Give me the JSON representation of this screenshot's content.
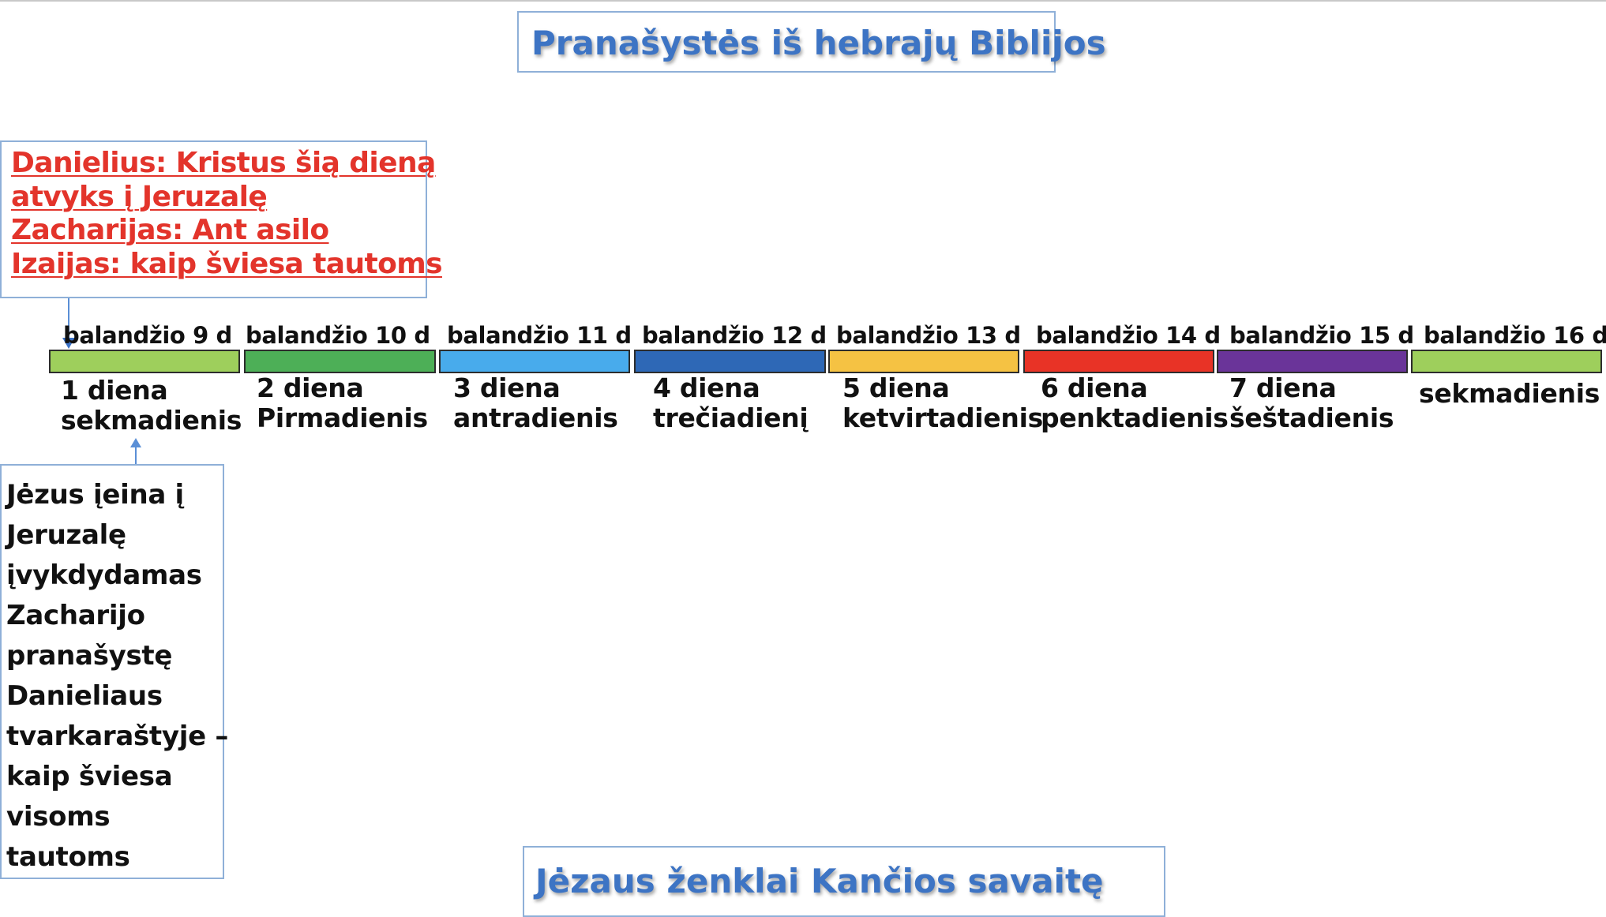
{
  "slide": {
    "top_title": "Pranašystės iš hebrajų Biblijos",
    "bottom_title": "Jėzaus ženklai Kančios savaitę",
    "prophecy_lines": [
      "Danielius: Kristus šią dieną",
      "atvyks į Jeruzalę",
      "Zacharijas: Ant asilo",
      "Izaijas: kaip šviesa tautoms"
    ],
    "fulfillment_lines": [
      "Jėzus įeina į",
      "Jeruzalę",
      "įvykdydamas",
      "Zacharijo",
      "pranašystę",
      "Danieliaus",
      "tvarkaraštyje –",
      "kaip šviesa",
      "visoms",
      "tautoms"
    ],
    "prophecy_color": "#e3342b",
    "title_color": "#3d74c4"
  },
  "timeline": {
    "days": [
      {
        "date": "balandžio 9 d",
        "line1": "1 diena",
        "line2": "sekmadienis",
        "color": "#9ecf5c"
      },
      {
        "date": "balandžio 10 d",
        "line1": "2 diena",
        "line2": "Pirmadienis",
        "color": "#4daf57"
      },
      {
        "date": "balandžio 11 d",
        "line1": "3 diena",
        "line2": "antradienis",
        "color": "#48abec"
      },
      {
        "date": "balandžio 12 d",
        "line1": "4 diena",
        "line2": "trečiadienį",
        "color": "#2e68b6"
      },
      {
        "date": "balandžio 13 d",
        "line1": "5 diena",
        "line2": "ketvirtadienis",
        "color": "#f5c243"
      },
      {
        "date": "balandžio 14 d",
        "line1": "6 diena",
        "line2": "penktadienis",
        "color": "#e83326"
      },
      {
        "date": "balandžio 15 d",
        "line1": "7 diena",
        "line2": "šeštadienis",
        "color": "#6a3499"
      },
      {
        "date": "balandžio 16 d",
        "line1": "",
        "line2": "sekmadienis",
        "color": "#9ecf5c"
      }
    ]
  }
}
